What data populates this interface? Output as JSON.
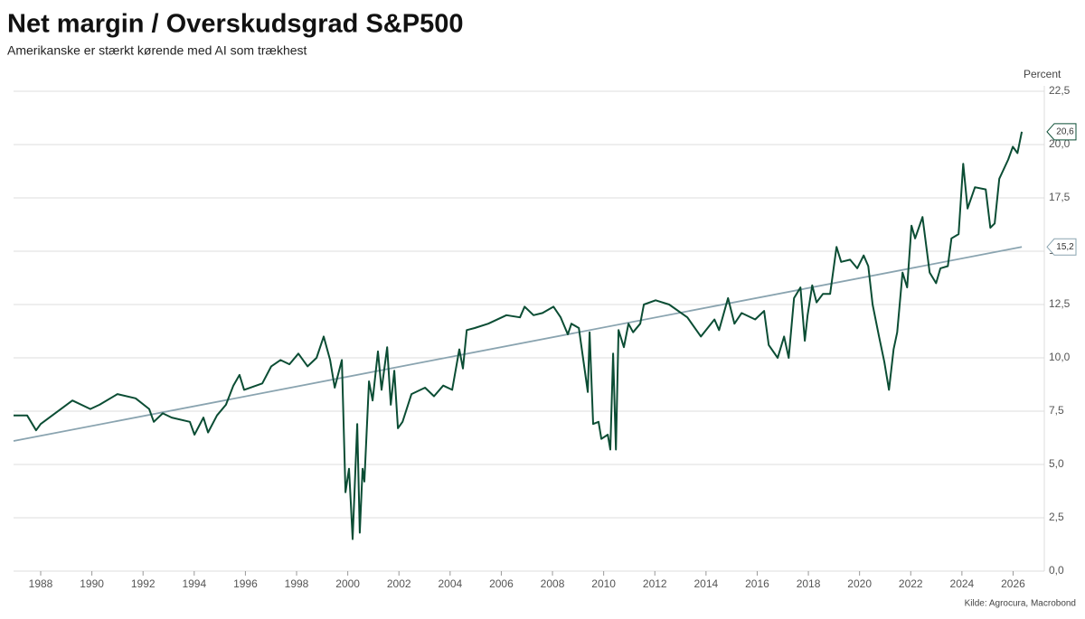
{
  "chart_data": {
    "type": "line",
    "title": "Net margin / Overskudsgrad S&P500",
    "subtitle": "Amerikanske er stærkt kørende med AI som trækhest",
    "y_label": "Percent",
    "source": "Kilde: Agrocura, Macrobond",
    "xlim": [
      1986.94,
      2027.22
    ],
    "xticks": [
      1988,
      1990,
      1992,
      1994,
      1996,
      1998,
      2000,
      2002,
      2004,
      2006,
      2008,
      2010,
      2012,
      2014,
      2016,
      2018,
      2020,
      2022,
      2024,
      2026
    ],
    "ylim": [
      0,
      22.5
    ],
    "yticks": [
      {
        "value": 0,
        "label": "0,0"
      },
      {
        "value": 2.5,
        "label": "2,5"
      },
      {
        "value": 5,
        "label": "5,0"
      },
      {
        "value": 7.5,
        "label": "7,5"
      },
      {
        "value": 10,
        "label": "10,0"
      },
      {
        "value": 12.5,
        "label": "12,5"
      },
      {
        "value": 15,
        "label": "15,0"
      },
      {
        "value": 17.5,
        "label": "17,5"
      },
      {
        "value": 20,
        "label": "20,0"
      },
      {
        "value": 22.5,
        "label": "22,5"
      }
    ],
    "grid": true,
    "series": [
      {
        "color": "#0b4d34",
        "last_label": "20,6",
        "x": [
          1986.94,
          1987.47,
          1987.82,
          1988.0,
          1989.24,
          1989.94,
          1990.3,
          1991.0,
          1991.71,
          1992.24,
          1992.42,
          1992.77,
          1993.12,
          1993.83,
          1994.01,
          1994.36,
          1994.54,
          1994.89,
          1995.24,
          1995.53,
          1995.77,
          1995.95,
          1996.66,
          1997.01,
          1997.37,
          1997.72,
          1998.07,
          1998.43,
          1998.78,
          1999.06,
          1999.31,
          1999.49,
          1999.77,
          1999.91,
          2000.05,
          2000.12,
          2000.19,
          2000.37,
          2000.47,
          2000.58,
          2000.65,
          2000.83,
          2000.97,
          2001.18,
          2001.32,
          2001.54,
          2001.68,
          2001.82,
          2001.96,
          2002.14,
          2002.49,
          2003.02,
          2003.37,
          2003.73,
          2004.08,
          2004.36,
          2004.5,
          2004.65,
          2004.96,
          2005.49,
          2006.2,
          2006.73,
          2006.91,
          2007.26,
          2007.61,
          2008.04,
          2008.32,
          2008.6,
          2008.74,
          2009.03,
          2009.38,
          2009.45,
          2009.59,
          2009.8,
          2009.91,
          2010.16,
          2010.26,
          2010.37,
          2010.48,
          2010.58,
          2010.79,
          2010.97,
          2011.15,
          2011.43,
          2011.57,
          2012.03,
          2012.56,
          2013.27,
          2013.8,
          2014.33,
          2014.51,
          2014.86,
          2015.11,
          2015.39,
          2015.92,
          2016.27,
          2016.45,
          2016.8,
          2017.05,
          2017.23,
          2017.44,
          2017.69,
          2017.86,
          2017.97,
          2018.15,
          2018.32,
          2018.57,
          2018.85,
          2019.1,
          2019.28,
          2019.63,
          2019.91,
          2020.16,
          2020.34,
          2020.51,
          2020.76,
          2020.97,
          2021.15,
          2021.33,
          2021.47,
          2021.68,
          2021.86,
          2022.03,
          2022.17,
          2022.46,
          2022.74,
          2022.99,
          2023.16,
          2023.45,
          2023.59,
          2023.87,
          2024.05,
          2024.22,
          2024.51,
          2024.93,
          2025.11,
          2025.28,
          2025.46,
          2025.81,
          2025.99,
          2026.17,
          2026.34
        ],
        "values": [
          7.3,
          7.3,
          6.6,
          6.9,
          8.0,
          7.6,
          7.8,
          8.3,
          8.1,
          7.6,
          7.0,
          7.4,
          7.2,
          7.0,
          6.4,
          7.2,
          6.5,
          7.3,
          7.8,
          8.7,
          9.2,
          8.5,
          8.8,
          9.6,
          9.9,
          9.7,
          10.2,
          9.6,
          10.0,
          11.0,
          9.9,
          8.6,
          9.9,
          3.7,
          4.8,
          3.2,
          1.5,
          6.9,
          1.8,
          4.8,
          4.2,
          8.9,
          8.0,
          10.3,
          8.5,
          10.5,
          7.8,
          9.4,
          6.7,
          7.0,
          8.3,
          8.6,
          8.2,
          8.7,
          8.5,
          10.4,
          9.5,
          11.3,
          11.4,
          11.6,
          12.0,
          11.9,
          12.4,
          12.0,
          12.1,
          12.4,
          11.9,
          11.1,
          11.6,
          11.4,
          8.4,
          11.2,
          6.9,
          7.0,
          6.2,
          6.4,
          5.7,
          10.2,
          5.7,
          11.3,
          10.5,
          11.6,
          11.2,
          11.6,
          12.5,
          12.7,
          12.5,
          11.9,
          11.0,
          11.8,
          11.3,
          12.8,
          11.6,
          12.1,
          11.8,
          12.2,
          10.6,
          10.0,
          11.0,
          10.0,
          12.8,
          13.3,
          10.8,
          12.0,
          13.4,
          12.6,
          13.0,
          13.0,
          15.2,
          14.5,
          14.6,
          14.2,
          14.8,
          14.3,
          12.5,
          11.0,
          9.8,
          8.5,
          10.4,
          11.2,
          14.0,
          13.3,
          16.2,
          15.6,
          16.6,
          14.0,
          13.5,
          14.2,
          14.3,
          15.6,
          15.8,
          19.1,
          17.0,
          18.0,
          17.9,
          16.1,
          16.3,
          18.4,
          19.3,
          19.9,
          19.6,
          20.6
        ]
      },
      {
        "color": "#8aa4b0",
        "last_label": "15,2",
        "x": [
          1986.94,
          2026.34
        ],
        "values": [
          6.1,
          15.2
        ]
      }
    ]
  }
}
